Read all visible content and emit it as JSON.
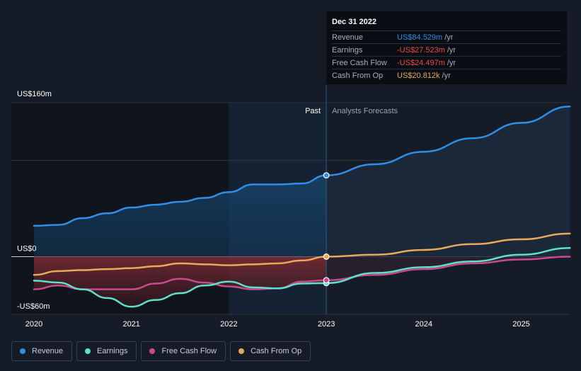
{
  "tooltip": {
    "date": "Dec 31 2022",
    "rows": [
      {
        "label": "Revenue",
        "value": "US$84.529m",
        "unit": "/yr",
        "color": "#2f8ee6"
      },
      {
        "label": "Earnings",
        "value": "-US$27.523m",
        "unit": "/yr",
        "color": "#ef4a4a"
      },
      {
        "label": "Free Cash Flow",
        "value": "-US$24.497m",
        "unit": "/yr",
        "color": "#ef4a4a"
      },
      {
        "label": "Cash From Op",
        "value": "US$20.812k",
        "unit": "/yr",
        "color": "#e8a95a"
      }
    ]
  },
  "legend": [
    {
      "label": "Revenue",
      "color": "#2f8ee6"
    },
    {
      "label": "Earnings",
      "color": "#5fe0c8"
    },
    {
      "label": "Free Cash Flow",
      "color": "#c94a8c"
    },
    {
      "label": "Cash From Op",
      "color": "#e8a95a"
    }
  ],
  "chart_data": {
    "type": "line",
    "title": "",
    "y_axis_labels": {
      "top": "US$160m",
      "zero": "US$0",
      "bottom": "-US$60m"
    },
    "ylim": [
      -60,
      160
    ],
    "xlim": [
      2020,
      2025.5
    ],
    "x_ticks": [
      "2020",
      "2021",
      "2022",
      "2023",
      "2024",
      "2025"
    ],
    "x_tick_values": [
      2020,
      2021,
      2022,
      2023,
      2024,
      2025
    ],
    "divider_x": 2023,
    "past_label": "Past",
    "forecast_label": "Analysts Forecasts",
    "series": [
      {
        "name": "Revenue",
        "color": "#2f8ee6",
        "x": [
          2020,
          2020.25,
          2020.5,
          2020.75,
          2021,
          2021.25,
          2021.5,
          2021.75,
          2022,
          2022.25,
          2022.5,
          2022.75,
          2023,
          2023.5,
          2024,
          2024.5,
          2025,
          2025.5
        ],
        "y": [
          32,
          33,
          40,
          45,
          51,
          54,
          57,
          61,
          67,
          75,
          75,
          76,
          84.5,
          96,
          109,
          123,
          139,
          156
        ]
      },
      {
        "name": "Earnings",
        "color": "#5fe0c8",
        "x": [
          2020,
          2020.25,
          2020.5,
          2020.75,
          2021,
          2021.25,
          2021.5,
          2021.75,
          2022,
          2022.25,
          2022.5,
          2022.75,
          2023,
          2023.5,
          2024,
          2024.5,
          2025,
          2025.5
        ],
        "y": [
          -25,
          -27,
          -34,
          -43,
          -52,
          -45,
          -38,
          -30,
          -26,
          -32,
          -33,
          -28,
          -27.5,
          -17,
          -11,
          -5,
          2,
          9
        ]
      },
      {
        "name": "Free Cash Flow",
        "color": "#c94a8c",
        "x": [
          2020,
          2020.25,
          2020.5,
          2020.75,
          2021,
          2021.25,
          2021.5,
          2021.75,
          2022,
          2022.25,
          2022.5,
          2022.75,
          2023,
          2023.5,
          2024,
          2024.5,
          2025,
          2025.5
        ],
        "y": [
          -34,
          -30,
          -34,
          -34,
          -34,
          -28,
          -23,
          -27,
          -31,
          -34,
          -33,
          -26,
          -24.5,
          -19,
          -13,
          -7,
          -3,
          0
        ]
      },
      {
        "name": "Cash From Op",
        "color": "#e8a95a",
        "x": [
          2020,
          2020.25,
          2020.5,
          2020.75,
          2021,
          2021.25,
          2021.5,
          2021.75,
          2022,
          2022.25,
          2022.5,
          2022.75,
          2023,
          2023.5,
          2024,
          2024.5,
          2025,
          2025.5
        ],
        "y": [
          -19,
          -15,
          -14,
          -13,
          -12,
          -10,
          -7,
          -8,
          -9,
          -8,
          -7,
          -4,
          0,
          2,
          7,
          13,
          18,
          24
        ]
      }
    ]
  }
}
